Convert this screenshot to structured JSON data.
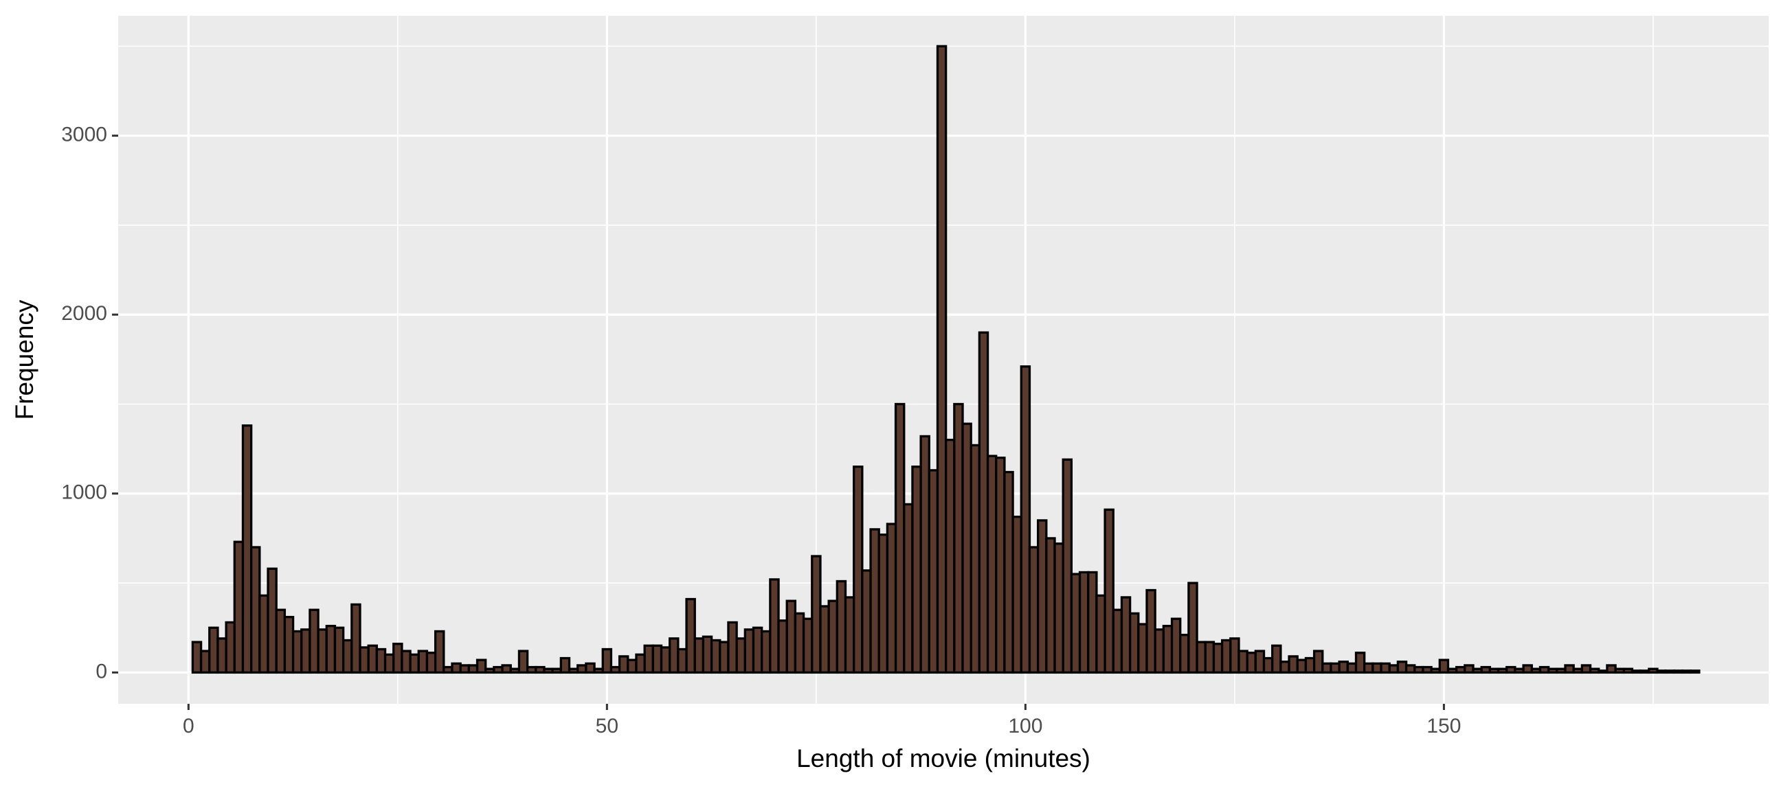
{
  "chart_data": {
    "type": "histogram",
    "x_label": "Length of movie (minutes)",
    "y_label": "Frequency",
    "bins": [
      0.5,
      1.5,
      2.5,
      3.5,
      4.5,
      5.5,
      6.5,
      7.5,
      8.5,
      9.5,
      10.5,
      11.5,
      12.5,
      13.5,
      14.5,
      15.5,
      16.5,
      17.5,
      18.5,
      19.5,
      20.5,
      21.5,
      22.5,
      23.5,
      24.5,
      25.5,
      26.5,
      27.5,
      28.5,
      29.5,
      30.5,
      31.5,
      32.5,
      33.5,
      34.5,
      35.5,
      36.5,
      37.5,
      38.5,
      39.5,
      40.5,
      41.5,
      42.5,
      43.5,
      44.5,
      45.5,
      46.5,
      47.5,
      48.5,
      49.5,
      50.5,
      51.5,
      52.5,
      53.5,
      54.5,
      55.5,
      56.5,
      57.5,
      58.5,
      59.5,
      60.5,
      61.5,
      62.5,
      63.5,
      64.5,
      65.5,
      66.5,
      67.5,
      68.5,
      69.5,
      70.5,
      71.5,
      72.5,
      73.5,
      74.5,
      75.5,
      76.5,
      77.5,
      78.5,
      79.5,
      80.5,
      81.5,
      82.5,
      83.5,
      84.5,
      85.5,
      86.5,
      87.5,
      88.5,
      89.5,
      90.5,
      91.5,
      92.5,
      93.5,
      94.5,
      95.5,
      96.5,
      97.5,
      98.5,
      99.5,
      100.5,
      101.5,
      102.5,
      103.5,
      104.5,
      105.5,
      106.5,
      107.5,
      108.5,
      109.5,
      110.5,
      111.5,
      112.5,
      113.5,
      114.5,
      115.5,
      116.5,
      117.5,
      118.5,
      119.5,
      120.5,
      121.5,
      122.5,
      123.5,
      124.5,
      125.5,
      126.5,
      127.5,
      128.5,
      129.5,
      130.5,
      131.5,
      132.5,
      133.5,
      134.5,
      135.5,
      136.5,
      137.5,
      138.5,
      139.5,
      140.5,
      141.5,
      142.5,
      143.5,
      144.5,
      145.5,
      146.5,
      147.5,
      148.5,
      149.5,
      150.5,
      151.5,
      152.5,
      153.5,
      154.5,
      155.5,
      156.5,
      157.5,
      158.5,
      159.5,
      160.5,
      161.5,
      162.5,
      163.5,
      164.5,
      165.5,
      166.5,
      167.5,
      168.5,
      169.5,
      170.5,
      171.5,
      172.5,
      173.5,
      174.5,
      175.5,
      176.5,
      177.5,
      178.5,
      179.5,
      180.5
    ],
    "values": [
      170,
      120,
      250,
      190,
      280,
      730,
      1380,
      700,
      430,
      580,
      350,
      310,
      230,
      240,
      350,
      240,
      260,
      250,
      180,
      380,
      140,
      150,
      130,
      100,
      160,
      120,
      100,
      120,
      110,
      230,
      30,
      50,
      40,
      40,
      70,
      20,
      30,
      40,
      20,
      120,
      30,
      30,
      20,
      20,
      80,
      20,
      40,
      50,
      20,
      130,
      30,
      90,
      70,
      100,
      150,
      150,
      140,
      190,
      130,
      410,
      190,
      200,
      180,
      170,
      280,
      190,
      240,
      250,
      230,
      520,
      290,
      400,
      330,
      300,
      650,
      370,
      400,
      510,
      420,
      1150,
      570,
      800,
      770,
      830,
      1500,
      940,
      1150,
      1320,
      1130,
      3500,
      1300,
      1500,
      1390,
      1270,
      1900,
      1210,
      1200,
      1120,
      870,
      1710,
      700,
      850,
      750,
      720,
      1190,
      550,
      560,
      560,
      430,
      910,
      350,
      420,
      330,
      270,
      460,
      240,
      260,
      300,
      210,
      500,
      170,
      170,
      160,
      180,
      190,
      120,
      110,
      120,
      80,
      150,
      60,
      90,
      70,
      80,
      120,
      50,
      50,
      60,
      50,
      110,
      50,
      50,
      50,
      40,
      60,
      40,
      30,
      30,
      20,
      70,
      20,
      30,
      40,
      20,
      30,
      20,
      20,
      30,
      20,
      40,
      20,
      30,
      20,
      20,
      40,
      20,
      40,
      20,
      10,
      40,
      20,
      20,
      10,
      10,
      20,
      10,
      10,
      10,
      10,
      10
    ],
    "color": "#5b3a2e",
    "edge_color": "#000000",
    "xlim": [
      -8.4,
      188.8
    ],
    "ylim": [
      -175,
      3670
    ],
    "xticks": [
      0,
      50,
      100,
      150
    ],
    "yticks": [
      0,
      1000,
      2000,
      3000
    ],
    "grid": true
  }
}
